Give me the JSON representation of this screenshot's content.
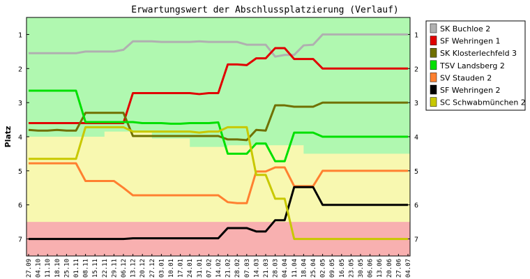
{
  "chart_data": {
    "type": "line",
    "title": "Erwartungswert der Abschlussplatzierung (Verlauf)",
    "xlabel": "",
    "ylabel": "Platz",
    "ylim": [
      0.5,
      7.5
    ],
    "y_inverted": true,
    "y_ticks": [
      1,
      2,
      3,
      4,
      5,
      6,
      7
    ],
    "grid": false,
    "legend_position": "right",
    "x": [
      "27.09",
      "04.10",
      "11.10",
      "18.10",
      "25.10",
      "01.11",
      "08.11",
      "15.11",
      "22.11",
      "29.11",
      "06.12",
      "13.12",
      "20.12",
      "27.12",
      "03.01",
      "10.01",
      "17.01",
      "24.01",
      "31.01",
      "07.02",
      "14.02",
      "21.02",
      "28.02",
      "07.03",
      "14.03",
      "21.03",
      "28.03",
      "04.04",
      "11.04",
      "18.04",
      "25.04",
      "02.05",
      "09.05",
      "16.05",
      "23.05",
      "30.05",
      "06.06",
      "13.06",
      "20.06",
      "27.06",
      "04.07"
    ],
    "series": [
      {
        "name": "SK Buchloe 2",
        "color": "#b0b0b0",
        "values": [
          1.55,
          1.55,
          1.55,
          1.55,
          1.55,
          1.55,
          1.5,
          1.5,
          1.5,
          1.5,
          1.45,
          1.2,
          1.2,
          1.2,
          1.22,
          1.22,
          1.22,
          1.22,
          1.2,
          1.22,
          1.22,
          1.22,
          1.22,
          1.3,
          1.3,
          1.3,
          1.65,
          1.6,
          1.6,
          1.32,
          1.3,
          1.0,
          1.0,
          1.0,
          1.0,
          1.0,
          1.0,
          1.0,
          1.0,
          1.0,
          1.0
        ]
      },
      {
        "name": "SF Wehringen 1",
        "color": "#e00000",
        "values": [
          3.6,
          3.6,
          3.6,
          3.6,
          3.6,
          3.6,
          3.6,
          3.6,
          3.6,
          3.6,
          3.6,
          2.72,
          2.72,
          2.72,
          2.72,
          2.72,
          2.72,
          2.72,
          2.75,
          2.72,
          2.72,
          1.88,
          1.88,
          1.9,
          1.7,
          1.7,
          1.4,
          1.4,
          1.72,
          1.72,
          1.72,
          2.0,
          2.0,
          2.0,
          2.0,
          2.0,
          2.0,
          2.0,
          2.0,
          2.0,
          2.0
        ]
      },
      {
        "name": "SK Klosterlechfeld 3",
        "color": "#707000",
        "values": [
          3.8,
          3.82,
          3.82,
          3.8,
          3.82,
          3.82,
          3.3,
          3.3,
          3.3,
          3.3,
          3.3,
          3.98,
          3.98,
          3.98,
          3.98,
          3.98,
          3.98,
          3.98,
          3.98,
          3.98,
          3.98,
          4.08,
          4.08,
          4.1,
          3.8,
          3.82,
          3.08,
          3.08,
          3.12,
          3.12,
          3.12,
          3.0,
          3.0,
          3.0,
          3.0,
          3.0,
          3.0,
          3.0,
          3.0,
          3.0,
          3.0
        ]
      },
      {
        "name": "TSV Landsberg 2",
        "color": "#00e000",
        "values": [
          2.65,
          2.65,
          2.65,
          2.65,
          2.65,
          2.65,
          3.57,
          3.57,
          3.57,
          3.57,
          3.57,
          3.57,
          3.6,
          3.6,
          3.6,
          3.62,
          3.62,
          3.6,
          3.6,
          3.6,
          3.58,
          4.5,
          4.5,
          4.5,
          4.2,
          4.2,
          4.72,
          4.72,
          3.88,
          3.88,
          3.88,
          4.0,
          4.0,
          4.0,
          4.0,
          4.0,
          4.0,
          4.0,
          4.0,
          4.0,
          4.0
        ]
      },
      {
        "name": "SV Stauden 2",
        "color": "#ff8030",
        "values": [
          4.78,
          4.78,
          4.78,
          4.78,
          4.78,
          4.78,
          5.3,
          5.3,
          5.3,
          5.3,
          5.5,
          5.72,
          5.72,
          5.72,
          5.72,
          5.72,
          5.72,
          5.72,
          5.72,
          5.72,
          5.72,
          5.92,
          5.95,
          5.95,
          5.02,
          5.02,
          4.9,
          4.9,
          5.45,
          5.45,
          5.45,
          5.0,
          5.0,
          5.0,
          5.0,
          5.0,
          5.0,
          5.0,
          5.0,
          5.0,
          5.0
        ]
      },
      {
        "name": "SF Wehringen 2",
        "color": "#000000",
        "values": [
          7.0,
          7.0,
          7.0,
          7.0,
          7.0,
          7.0,
          7.0,
          7.0,
          7.0,
          7.0,
          7.0,
          6.98,
          6.98,
          6.98,
          6.98,
          6.98,
          6.98,
          6.98,
          6.98,
          6.98,
          6.98,
          6.68,
          6.68,
          6.68,
          6.78,
          6.78,
          6.45,
          6.45,
          5.48,
          5.48,
          5.48,
          6.0,
          6.0,
          6.0,
          6.0,
          6.0,
          6.0,
          6.0,
          6.0,
          6.0,
          6.0
        ]
      },
      {
        "name": "SC Schwabmünchen 2",
        "color": "#c8c800",
        "values": [
          4.65,
          4.65,
          4.65,
          4.65,
          4.65,
          4.65,
          3.72,
          3.72,
          3.72,
          3.72,
          3.72,
          3.85,
          3.85,
          3.85,
          3.85,
          3.85,
          3.85,
          3.85,
          3.88,
          3.85,
          3.85,
          3.72,
          3.72,
          3.72,
          5.12,
          5.12,
          5.82,
          5.82,
          7.0,
          7.0,
          7.0,
          7.0,
          7.0,
          7.0,
          7.0,
          7.0,
          7.0,
          7.0,
          7.0,
          7.0,
          7.0
        ]
      }
    ],
    "background_zones": [
      {
        "zone": "promotion",
        "color": "#b0f8b0"
      },
      {
        "zone": "midfield",
        "color": "#f8f8b0"
      },
      {
        "zone": "relegation",
        "color": "#f8b0b0"
      }
    ]
  }
}
